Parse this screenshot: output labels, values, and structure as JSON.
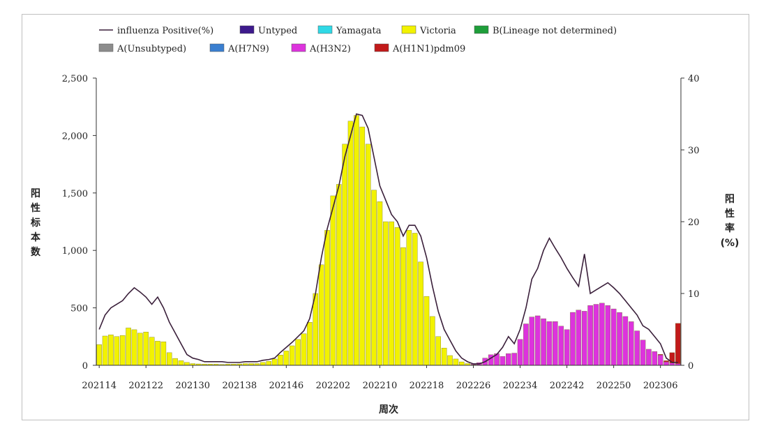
{
  "chart_data": {
    "type": "bar",
    "stacked": true,
    "title": "",
    "xlabel": "周次",
    "ylabel_left": [
      "阳",
      "性",
      "标",
      "本",
      "数"
    ],
    "ylabel_right": [
      "阳",
      "性",
      "率",
      "(%)"
    ],
    "ylim_left": [
      0,
      2500
    ],
    "ylim_right": [
      0,
      40
    ],
    "yticks_left": [
      "0",
      "500",
      "1,000",
      "1,500",
      "2,000",
      "2,500"
    ],
    "yticks_right": [
      "0",
      "10",
      "20",
      "30",
      "40"
    ],
    "xtick_labels": [
      "202114",
      "202122",
      "202130",
      "202138",
      "202146",
      "202202",
      "202210",
      "202218",
      "202226",
      "202234",
      "202242",
      "202250",
      "202306"
    ],
    "xtick_index": [
      0,
      8,
      16,
      24,
      32,
      40,
      48,
      56,
      64,
      72,
      80,
      88,
      96
    ],
    "n_weeks": 100,
    "legend_position": "top",
    "legend": [
      {
        "name": "influenza Positive(%)",
        "kind": "line",
        "color": "#3a1f3a"
      },
      {
        "name": "Untyped",
        "kind": "box",
        "color": "#3d1a8c"
      },
      {
        "name": "Yamagata",
        "kind": "box",
        "color": "#2fd9e6"
      },
      {
        "name": "Victoria",
        "kind": "box",
        "color": "#f2f200"
      },
      {
        "name": "B(Lineage not determined)",
        "kind": "box",
        "color": "#1e9e3a"
      },
      {
        "name": "A(Unsubtyped)",
        "kind": "box",
        "color": "#8c8c8c"
      },
      {
        "name": "A(H7N9)",
        "kind": "box",
        "color": "#3a7fd0"
      },
      {
        "name": "A(H3N2)",
        "kind": "box",
        "color": "#dd33dd"
      },
      {
        "name": "A(H1N1)pdm09",
        "kind": "box",
        "color": "#c21a1a"
      }
    ],
    "series": [
      {
        "name": "Victoria",
        "color": "#f2f200",
        "values": [
          180,
          255,
          265,
          250,
          260,
          325,
          310,
          280,
          290,
          245,
          210,
          205,
          110,
          60,
          40,
          25,
          15,
          12,
          10,
          10,
          10,
          8,
          10,
          10,
          12,
          15,
          15,
          15,
          25,
          35,
          55,
          90,
          125,
          170,
          225,
          275,
          375,
          625,
          875,
          1175,
          1475,
          1575,
          1925,
          2125,
          2175,
          2075,
          1925,
          1525,
          1425,
          1250,
          1250,
          1200,
          1025,
          1175,
          1150,
          900,
          600,
          425,
          250,
          150,
          85,
          55,
          30,
          15,
          5,
          3,
          3,
          2,
          2,
          2,
          2,
          1,
          1,
          1,
          1,
          1,
          1,
          1,
          1,
          1,
          1,
          1,
          1,
          1,
          1,
          1,
          1,
          1,
          1,
          0,
          0,
          0,
          0,
          0,
          0,
          0,
          0,
          0,
          0,
          0
        ]
      },
      {
        "name": "A(H3N2)",
        "color": "#dd33dd",
        "values": [
          0,
          0,
          0,
          0,
          0,
          0,
          0,
          0,
          0,
          0,
          0,
          0,
          0,
          0,
          0,
          0,
          0,
          0,
          0,
          0,
          0,
          0,
          0,
          0,
          0,
          0,
          0,
          0,
          0,
          0,
          0,
          0,
          0,
          0,
          0,
          0,
          0,
          0,
          0,
          0,
          0,
          0,
          0,
          0,
          0,
          0,
          0,
          0,
          0,
          0,
          0,
          0,
          0,
          0,
          0,
          0,
          0,
          0,
          0,
          0,
          0,
          0,
          0,
          0,
          5,
          20,
          60,
          90,
          100,
          75,
          100,
          105,
          225,
          360,
          420,
          430,
          405,
          380,
          380,
          340,
          310,
          460,
          480,
          470,
          520,
          530,
          540,
          520,
          490,
          460,
          425,
          380,
          300,
          220,
          140,
          120,
          90,
          30,
          20,
          15
        ]
      },
      {
        "name": "A(H1N1)pdm09",
        "color": "#c21a1a",
        "values": [
          0,
          0,
          0,
          0,
          0,
          0,
          0,
          0,
          0,
          0,
          0,
          0,
          0,
          0,
          0,
          0,
          0,
          0,
          0,
          0,
          0,
          0,
          0,
          0,
          0,
          0,
          0,
          0,
          0,
          0,
          0,
          0,
          0,
          0,
          0,
          0,
          0,
          0,
          0,
          0,
          0,
          0,
          0,
          0,
          0,
          0,
          0,
          0,
          0,
          0,
          0,
          0,
          0,
          0,
          0,
          0,
          0,
          0,
          0,
          0,
          0,
          0,
          0,
          0,
          0,
          0,
          0,
          0,
          0,
          0,
          0,
          0,
          0,
          0,
          0,
          0,
          0,
          0,
          0,
          0,
          0,
          0,
          0,
          0,
          0,
          0,
          0,
          0,
          0,
          0,
          0,
          0,
          0,
          0,
          0,
          0,
          5,
          10,
          90,
          350
        ]
      },
      {
        "name": "influenza Positive(%)",
        "color": "#3a1f3a",
        "axis": "right",
        "kind": "line",
        "values": [
          5,
          7,
          8,
          8.5,
          9,
          10,
          10.8,
          10.2,
          9.5,
          8.5,
          9.5,
          8,
          6,
          4.5,
          3,
          1.5,
          1,
          0.8,
          0.5,
          0.5,
          0.5,
          0.5,
          0.4,
          0.4,
          0.4,
          0.5,
          0.5,
          0.5,
          0.7,
          0.8,
          1,
          1.8,
          2.5,
          3.2,
          4,
          4.8,
          6.5,
          10,
          15,
          19,
          22,
          25,
          29,
          32,
          35,
          34.8,
          33,
          29,
          25,
          23,
          21,
          20,
          18,
          19.5,
          19.5,
          18,
          15,
          11,
          7.5,
          5,
          3.5,
          2,
          1,
          0.5,
          0.2,
          0.2,
          0.5,
          1,
          1.5,
          2.5,
          4,
          3,
          5,
          8,
          12,
          13.5,
          16,
          17.7,
          16.3,
          15,
          13.5,
          12.2,
          11,
          15.5,
          10,
          10.5,
          11,
          11.5,
          10.8,
          10,
          9,
          8,
          7,
          5.5,
          5,
          4,
          3,
          1,
          0.4,
          0.4
        ]
      }
    ]
  }
}
